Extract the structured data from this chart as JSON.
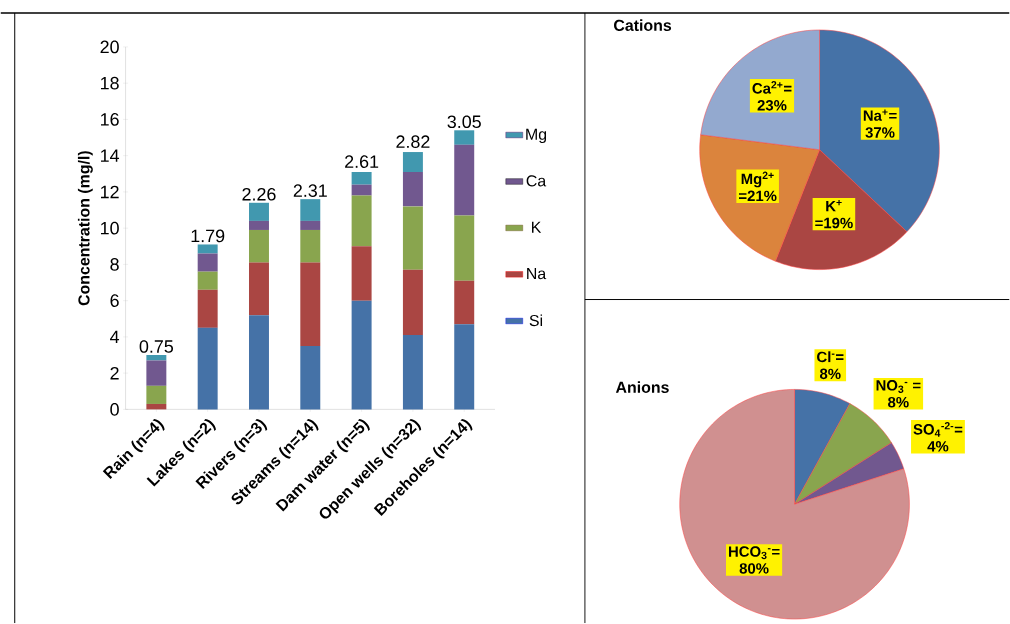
{
  "chart_data": [
    {
      "type": "bar",
      "stacked": true,
      "ylabel": "Concentration (mg/l)",
      "categories": [
        "Rain (n=4)",
        "Lakes (n=2)",
        "Rivers (n=3)",
        "Streams (n=14)",
        "Dam water (n=5)",
        "Open wells (n=32)",
        "Boreholes (n=14)"
      ],
      "series": [
        {
          "name": "Si",
          "color": "#4572a7",
          "values": [
            0,
            4.5,
            5.2,
            3.5,
            6.0,
            4.1,
            4.7
          ]
        },
        {
          "name": "Na",
          "color": "#aa4643",
          "values": [
            0.3,
            2.1,
            2.9,
            4.6,
            3.0,
            3.6,
            2.4
          ]
        },
        {
          "name": "K",
          "color": "#89a54e",
          "values": [
            1.0,
            1.0,
            1.8,
            1.8,
            2.8,
            3.5,
            3.6
          ]
        },
        {
          "name": "Ca",
          "color": "#71588f",
          "values": [
            1.4,
            1.0,
            0.5,
            0.5,
            0.6,
            1.9,
            3.9
          ]
        },
        {
          "name": "Mg",
          "color": "#4198af",
          "values": [
            0.3,
            0.5,
            1.0,
            1.2,
            0.7,
            1.1,
            0.8
          ]
        }
      ],
      "ylim": [
        0,
        20
      ],
      "yticks": [
        0,
        2,
        4,
        6,
        8,
        10,
        12,
        14,
        16,
        18,
        20
      ],
      "legend": "right",
      "annotations": [
        {
          "text": "0.75",
          "x": "Rain (n=4)",
          "y": 3.0
        },
        {
          "text": "1.79",
          "x": "Lakes (n=2)",
          "y": 9.1
        },
        {
          "text": "2.26",
          "x": "Rivers (n=3)",
          "y": 11.4
        },
        {
          "text": "2.31",
          "x": "Streams (n=14)",
          "y": 11.6
        },
        {
          "text": "2.61",
          "x": "Dam water (n=5)",
          "y": 13.2
        },
        {
          "text": "2.82",
          "x": "Open wells (n=32)",
          "y": 14.3
        },
        {
          "text": "3.05",
          "x": "Boreholes (n=14)",
          "y": 15.4
        }
      ]
    },
    {
      "type": "pie",
      "title": "Cations",
      "categories": [
        "Na$^{+}$=",
        "K$^{+}$",
        "Mg$^{2+}$",
        "Ca$^{2+}$="
      ],
      "values": [
        37,
        19,
        21,
        23
      ],
      "value_labels": [
        "37%",
        "=19%",
        "=21%",
        "23%"
      ],
      "colors": [
        "#4572a7",
        "#aa4643",
        "#db843d",
        "#93a9cf"
      ]
    },
    {
      "type": "pie",
      "title": "Anions",
      "categories": [
        "Cl$^{-}$=",
        "NO$_{3}$$^{-}$ =",
        "SO$_{4}$$^{-2-}$=",
        "HCO$_{3}$$^{-}$="
      ],
      "values": [
        8,
        8,
        4,
        80
      ],
      "value_labels": [
        "8%",
        "8%",
        "4%",
        "80%"
      ],
      "colors": [
        "#4572a7",
        "#89a54e",
        "#71588f",
        "#d09090"
      ]
    }
  ]
}
